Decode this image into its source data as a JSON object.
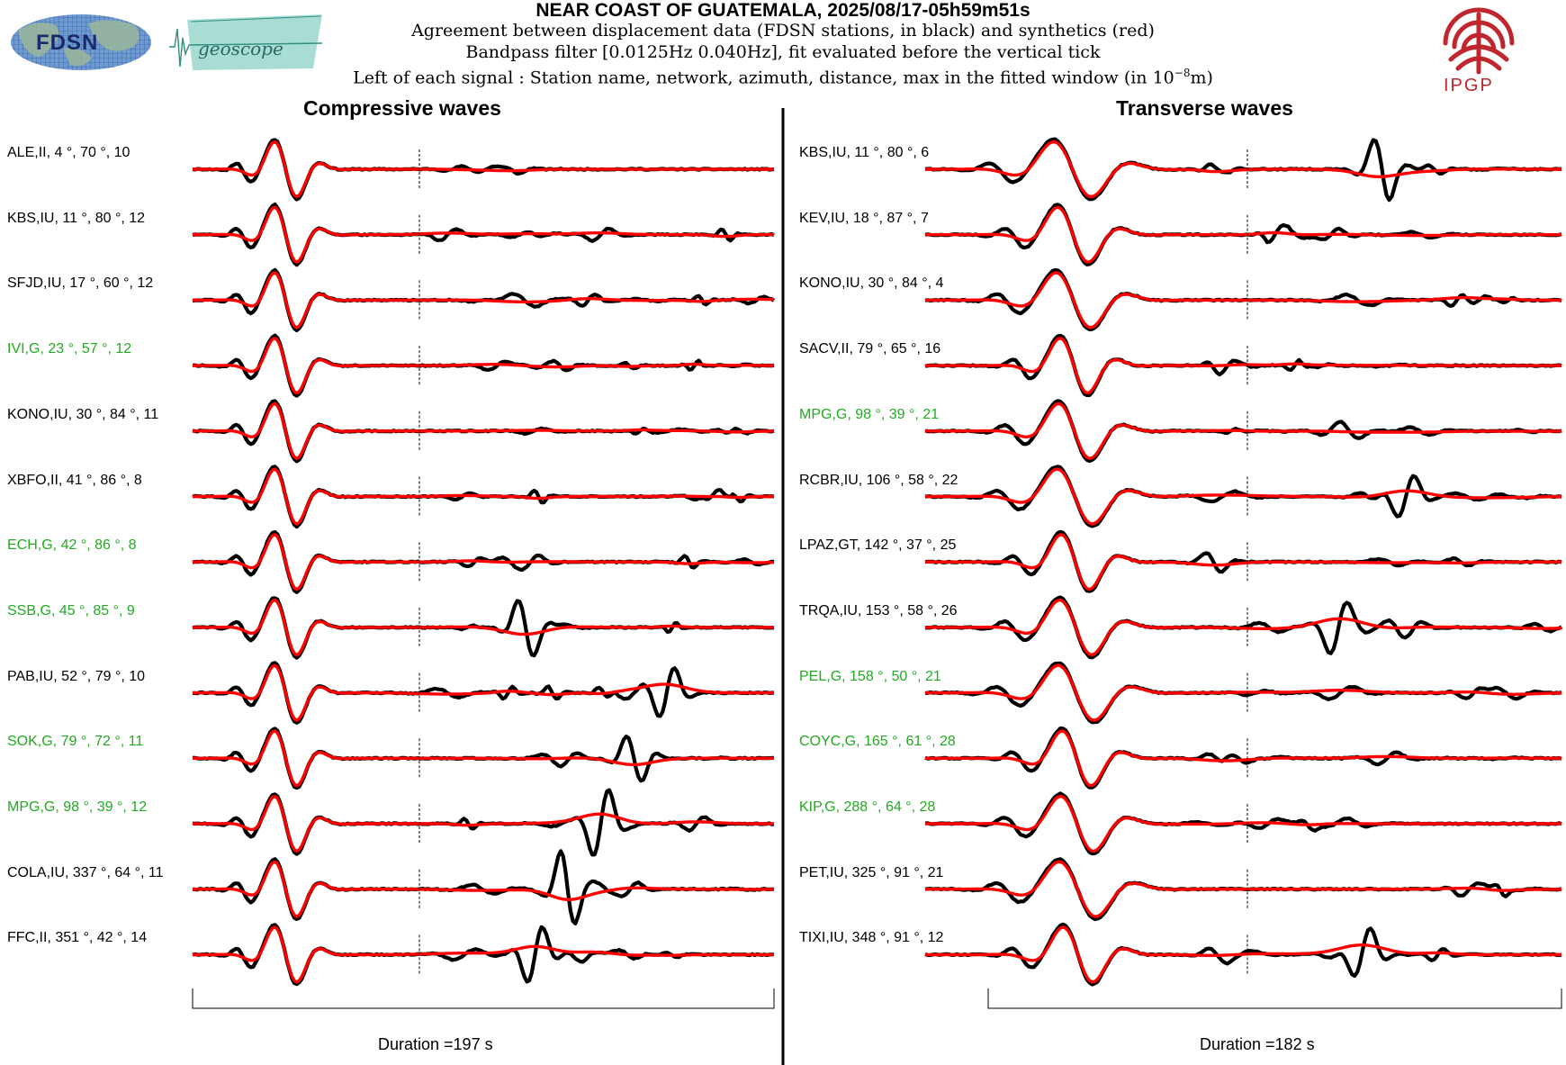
{
  "header": {
    "title": "NEAR COAST OF GUATEMALA, 2025/08/17-05h59m51s",
    "line1": "Agreement between displacement data (FDSN stations, in black) and synthetics (red)",
    "line2": "Bandpass filter [0.0125Hz 0.040Hz], fit evaluated before the vertical tick",
    "line3_pre": "Left of each signal : Station name, network, azimuth, distance, max in the fitted window (in 10",
    "line3_sup": "−8",
    "line3_post": "m)"
  },
  "logos": {
    "fdsn": "FDSN",
    "geoscope": "geoscope",
    "ipgp": "IPGP"
  },
  "colors": {
    "data": "#000000",
    "synthetic": "#ff0000",
    "highlight": "#22aa22",
    "ipgp": "#c0262d"
  },
  "chart_data": [
    {
      "type": "line",
      "title": "Compressive waves",
      "duration_label": "Duration =197 s",
      "duration_s": 197,
      "series_legend": {
        "data": "black",
        "synthetics": "red"
      },
      "stations": [
        {
          "label": "ALE,II, 4 °, 70 °, 10",
          "name": "ALE",
          "network": "II",
          "azimuth": 4,
          "distance": 70,
          "max": 10,
          "highlight": false
        },
        {
          "label": "KBS,IU, 11 °, 80 °, 12",
          "name": "KBS",
          "network": "IU",
          "azimuth": 11,
          "distance": 80,
          "max": 12,
          "highlight": false
        },
        {
          "label": "SFJD,IU, 17 °, 60 °, 12",
          "name": "SFJD",
          "network": "IU",
          "azimuth": 17,
          "distance": 60,
          "max": 12,
          "highlight": false
        },
        {
          "label": "IVI,G, 23 °, 57 °, 12",
          "name": "IVI",
          "network": "G",
          "azimuth": 23,
          "distance": 57,
          "max": 12,
          "highlight": true
        },
        {
          "label": "KONO,IU, 30 °, 84 °, 11",
          "name": "KONO",
          "network": "IU",
          "azimuth": 30,
          "distance": 84,
          "max": 11,
          "highlight": false
        },
        {
          "label": "XBFO,II, 41 °, 86 °, 8",
          "name": "XBFO",
          "network": "II",
          "azimuth": 41,
          "distance": 86,
          "max": 8,
          "highlight": false
        },
        {
          "label": "ECH,G, 42 °, 86 °, 8",
          "name": "ECH",
          "network": "G",
          "azimuth": 42,
          "distance": 86,
          "max": 8,
          "highlight": true
        },
        {
          "label": "SSB,G, 45 °, 85 °, 9",
          "name": "SSB",
          "network": "G",
          "azimuth": 45,
          "distance": 85,
          "max": 9,
          "highlight": true
        },
        {
          "label": "PAB,IU, 52 °, 79 °, 10",
          "name": "PAB",
          "network": "IU",
          "azimuth": 52,
          "distance": 79,
          "max": 10,
          "highlight": false
        },
        {
          "label": "SOK,G, 79 °, 72 °, 11",
          "name": "SOK",
          "network": "G",
          "azimuth": 79,
          "distance": 72,
          "max": 11,
          "highlight": true
        },
        {
          "label": "MPG,G, 98 °, 39 °, 12",
          "name": "MPG",
          "network": "G",
          "azimuth": 98,
          "distance": 39,
          "max": 12,
          "highlight": true
        },
        {
          "label": "COLA,IU, 337 °, 64 °, 11",
          "name": "COLA",
          "network": "IU",
          "azimuth": 337,
          "distance": 64,
          "max": 11,
          "highlight": false
        },
        {
          "label": "FFC,II, 351 °, 42 °, 14",
          "name": "FFC",
          "network": "II",
          "azimuth": 351,
          "distance": 42,
          "max": 14,
          "highlight": false
        }
      ]
    },
    {
      "type": "line",
      "title": "Transverse waves",
      "duration_label": "Duration =182 s",
      "duration_s": 182,
      "series_legend": {
        "data": "black",
        "synthetics": "red"
      },
      "stations": [
        {
          "label": "KBS,IU, 11 °, 80 °, 6",
          "name": "KBS",
          "network": "IU",
          "azimuth": 11,
          "distance": 80,
          "max": 6,
          "highlight": false
        },
        {
          "label": "KEV,IU, 18 °, 87 °, 7",
          "name": "KEV",
          "network": "IU",
          "azimuth": 18,
          "distance": 87,
          "max": 7,
          "highlight": false
        },
        {
          "label": "KONO,IU, 30 °, 84 °, 4",
          "name": "KONO",
          "network": "IU",
          "azimuth": 30,
          "distance": 84,
          "max": 4,
          "highlight": false
        },
        {
          "label": "SACV,II, 79 °, 65 °, 16",
          "name": "SACV",
          "network": "II",
          "azimuth": 79,
          "distance": 65,
          "max": 16,
          "highlight": false
        },
        {
          "label": "MPG,G, 98 °, 39 °, 21",
          "name": "MPG",
          "network": "G",
          "azimuth": 98,
          "distance": 39,
          "max": 21,
          "highlight": true
        },
        {
          "label": "RCBR,IU, 106 °, 58 °, 22",
          "name": "RCBR",
          "network": "IU",
          "azimuth": 106,
          "distance": 58,
          "max": 22,
          "highlight": false
        },
        {
          "label": "LPAZ,GT, 142 °, 37 °, 25",
          "name": "LPAZ",
          "network": "GT",
          "azimuth": 142,
          "distance": 37,
          "max": 25,
          "highlight": false
        },
        {
          "label": "TRQA,IU, 153 °, 58 °, 26",
          "name": "TRQA",
          "network": "IU",
          "azimuth": 153,
          "distance": 58,
          "max": 26,
          "highlight": false
        },
        {
          "label": "PEL,G, 158 °, 50 °, 21",
          "name": "PEL",
          "network": "G",
          "azimuth": 158,
          "distance": 50,
          "max": 21,
          "highlight": true
        },
        {
          "label": "COYC,G, 165 °, 61 °, 28",
          "name": "COYC",
          "network": "G",
          "azimuth": 165,
          "distance": 61,
          "max": 28,
          "highlight": true
        },
        {
          "label": "KIP,G, 288 °, 64 °, 28",
          "name": "KIP",
          "network": "G",
          "azimuth": 288,
          "distance": 64,
          "max": 28,
          "highlight": true
        },
        {
          "label": "PET,IU, 325 °, 91 °, 21",
          "name": "PET",
          "network": "IU",
          "azimuth": 325,
          "distance": 91,
          "max": 21,
          "highlight": false
        },
        {
          "label": "TIXI,IU, 348 °, 91 °, 12",
          "name": "TIXI",
          "network": "IU",
          "azimuth": 348,
          "distance": 91,
          "max": 12,
          "highlight": false
        }
      ]
    }
  ]
}
